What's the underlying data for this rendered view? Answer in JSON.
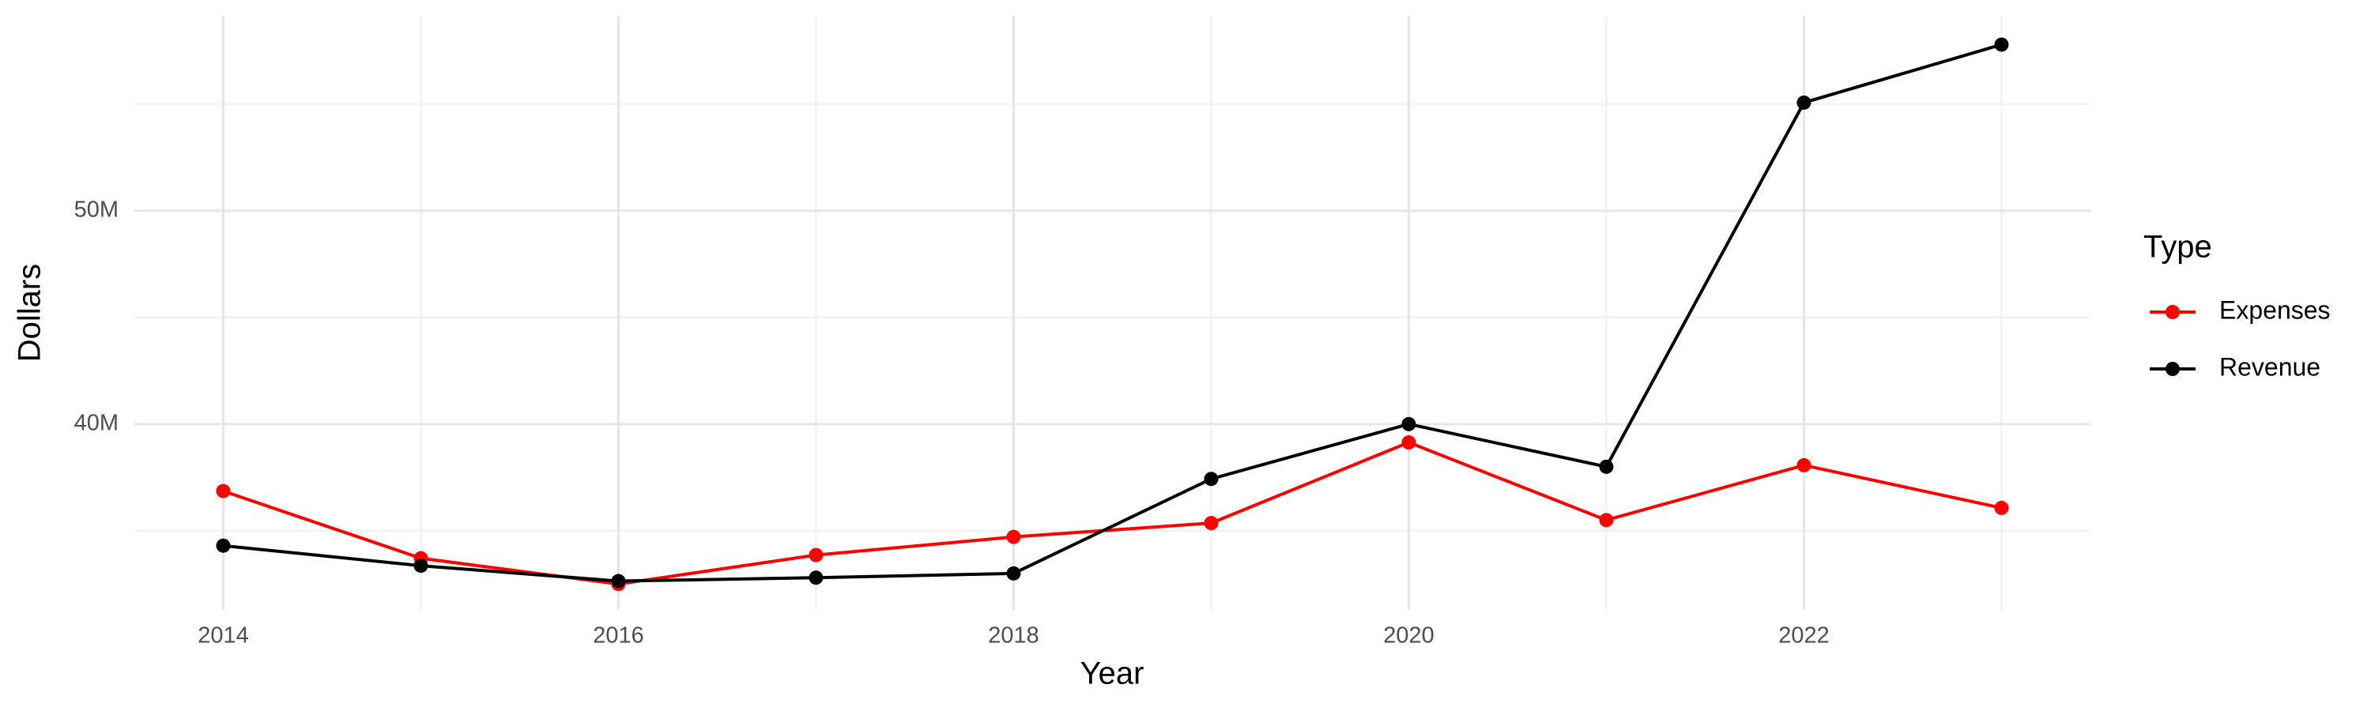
{
  "chart_data": {
    "type": "line",
    "x_label": "Year",
    "y_label": "Dollars",
    "legend_title": "Type",
    "legend_position": "right",
    "x": [
      2014,
      2015,
      2016,
      2017,
      2018,
      2019,
      2020,
      2021,
      2022,
      2023
    ],
    "series": [
      {
        "name": "Expenses",
        "color": "#ff0000",
        "values": [
          36860000,
          33710000,
          32500000,
          33860000,
          34710000,
          35360000,
          39140000,
          35500000,
          38070000,
          36070000
        ]
      },
      {
        "name": "Revenue",
        "color": "#000000",
        "values": [
          34300000,
          33360000,
          32640000,
          32800000,
          33000000,
          37430000,
          40000000,
          38000000,
          55070000,
          57790000
        ]
      }
    ],
    "xlim": [
      2013.55,
      2023.45
    ],
    "xticks": [
      2014,
      2016,
      2018,
      2020,
      2022
    ],
    "x_minor_ticks": [
      2015,
      2017,
      2019,
      2021,
      2023
    ],
    "ylim": [
      31290000,
      59140000
    ],
    "yticks": [
      {
        "value": 40000000,
        "label": "40M"
      },
      {
        "value": 50000000,
        "label": "50M"
      }
    ],
    "y_minor_ticks": [
      35000000,
      45000000,
      55000000
    ],
    "grid": true
  }
}
